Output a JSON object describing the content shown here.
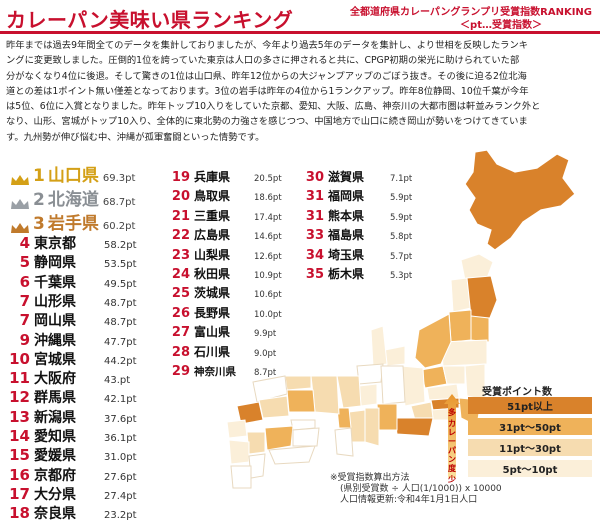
{
  "header": {
    "title": "カレーパン美味い県ランキング",
    "subtitle_line1": "全都道府県カレーパングランプリ受賞指数RANKING",
    "subtitle_line2": "＜pt…受賞指数＞"
  },
  "intro": [
    "昨年までは過去9年間全てのデータを集計しておりましたが、今年より過去5年のデータを集計し、より世相を反映したランキ",
    "ングに変更致しました。圧倒的1位を誇っていた東京は人口の多さに押されると共に、CPGP初期の栄光に助けられていた部",
    "分がなくなり4位に後退。そして驚きの1位は山口県、昨年12位からの大ジャンプアップのごぼう抜き。その後に迫る2位北海",
    "道との差は1ポイント無い僅差となっております。3位の岩手は昨年の4位から1ランクアップ。昨年8位静岡、10位千葉が今年",
    "は5位、6位に入賞となりました。昨年トップ10入りをしていた京都、愛知、大阪、広島、神奈川の大都市圏は軒並みランク外と",
    "なり、山形、宮城がトップ10入り、全体的に東北勢の力強さを感じつつ、中国地方で山口に続き岡山が勢いをつけてきていま",
    "す。九州勢が伸び悩む中、沖縄が孤軍奮闘といった情勢です。"
  ],
  "top3": [
    {
      "rank": "1",
      "name": "山口県",
      "pt": "69.3pt",
      "color": "#d4a017"
    },
    {
      "rank": "2",
      "name": "北海道",
      "pt": "68.7pt",
      "color": "#9aa0a6"
    },
    {
      "rank": "3",
      "name": "岩手県",
      "pt": "60.2pt",
      "color": "#b5651d"
    }
  ],
  "ranks_col1": [
    {
      "rank": "4",
      "name": "東京都",
      "pt": "58.2pt"
    },
    {
      "rank": "5",
      "name": "静岡県",
      "pt": "53.5pt"
    },
    {
      "rank": "6",
      "name": "千葉県",
      "pt": "49.5pt"
    },
    {
      "rank": "7",
      "name": "山形県",
      "pt": "48.7pt"
    },
    {
      "rank": "7",
      "name": "岡山県",
      "pt": "48.7pt"
    },
    {
      "rank": "9",
      "name": "沖縄県",
      "pt": "47.7pt"
    },
    {
      "rank": "10",
      "name": "宮城県",
      "pt": "44.2pt"
    },
    {
      "rank": "11",
      "name": "大阪府",
      "pt": "43.pt"
    },
    {
      "rank": "12",
      "name": "群馬県",
      "pt": "42.1pt"
    },
    {
      "rank": "13",
      "name": "新潟県",
      "pt": "37.6pt"
    },
    {
      "rank": "14",
      "name": "愛知県",
      "pt": "36.1pt"
    },
    {
      "rank": "15",
      "name": "愛媛県",
      "pt": "31.0pt"
    },
    {
      "rank": "16",
      "name": "京都府",
      "pt": "27.6pt"
    },
    {
      "rank": "17",
      "name": "大分県",
      "pt": "27.4pt"
    },
    {
      "rank": "18",
      "name": "奈良県",
      "pt": "23.2pt"
    }
  ],
  "ranks_col2": [
    {
      "rank": "19",
      "name": "兵庫県",
      "pt": "20.5pt"
    },
    {
      "rank": "20",
      "name": "鳥取県",
      "pt": "18.6pt"
    },
    {
      "rank": "21",
      "name": "三重県",
      "pt": "17.4pt"
    },
    {
      "rank": "22",
      "name": "広島県",
      "pt": "14.6pt"
    },
    {
      "rank": "23",
      "name": "山梨県",
      "pt": "12.6pt"
    },
    {
      "rank": "24",
      "name": "秋田県",
      "pt": "10.9pt"
    },
    {
      "rank": "25",
      "name": "茨城県",
      "pt": "10.6pt"
    },
    {
      "rank": "26",
      "name": "長野県",
      "pt": "10.0pt"
    },
    {
      "rank": "27",
      "name": "富山県",
      "pt": "9.9pt"
    },
    {
      "rank": "28",
      "name": "石川県",
      "pt": "9.0pt"
    },
    {
      "rank": "29",
      "name": "神奈川県",
      "pt": "8.7pt"
    }
  ],
  "ranks_col3": [
    {
      "rank": "30",
      "name": "滋賀県",
      "pt": "7.1pt"
    },
    {
      "rank": "31",
      "name": "福岡県",
      "pt": "5.9pt"
    },
    {
      "rank": "31",
      "name": "熊本県",
      "pt": "5.9pt"
    },
    {
      "rank": "33",
      "name": "福島県",
      "pt": "5.8pt"
    },
    {
      "rank": "34",
      "name": "埼玉県",
      "pt": "5.7pt"
    },
    {
      "rank": "35",
      "name": "栃木県",
      "pt": "5.3pt"
    }
  ],
  "legend": {
    "title": "受賞ポイント数",
    "items": [
      {
        "label": "51pt以上",
        "color": "#d9822b"
      },
      {
        "label": "31pt〜50pt",
        "color": "#efb25a"
      },
      {
        "label": "11pt〜30pt",
        "color": "#f6dcb0"
      },
      {
        "label": "5pt〜10pt",
        "color": "#fbefd9"
      }
    ],
    "arrow_top": "多",
    "arrow_mid": "カレーパン度",
    "arrow_bottom": "少"
  },
  "note": {
    "line1": "※受賞指数算出方法",
    "line2": "(県別受賞数 ÷ 人口(1/1000)) x 10000",
    "line3": "人口情報更新:令和4年1月1日人口"
  },
  "colors": {
    "accent": "#c8102e",
    "rank": "#c8102e"
  }
}
